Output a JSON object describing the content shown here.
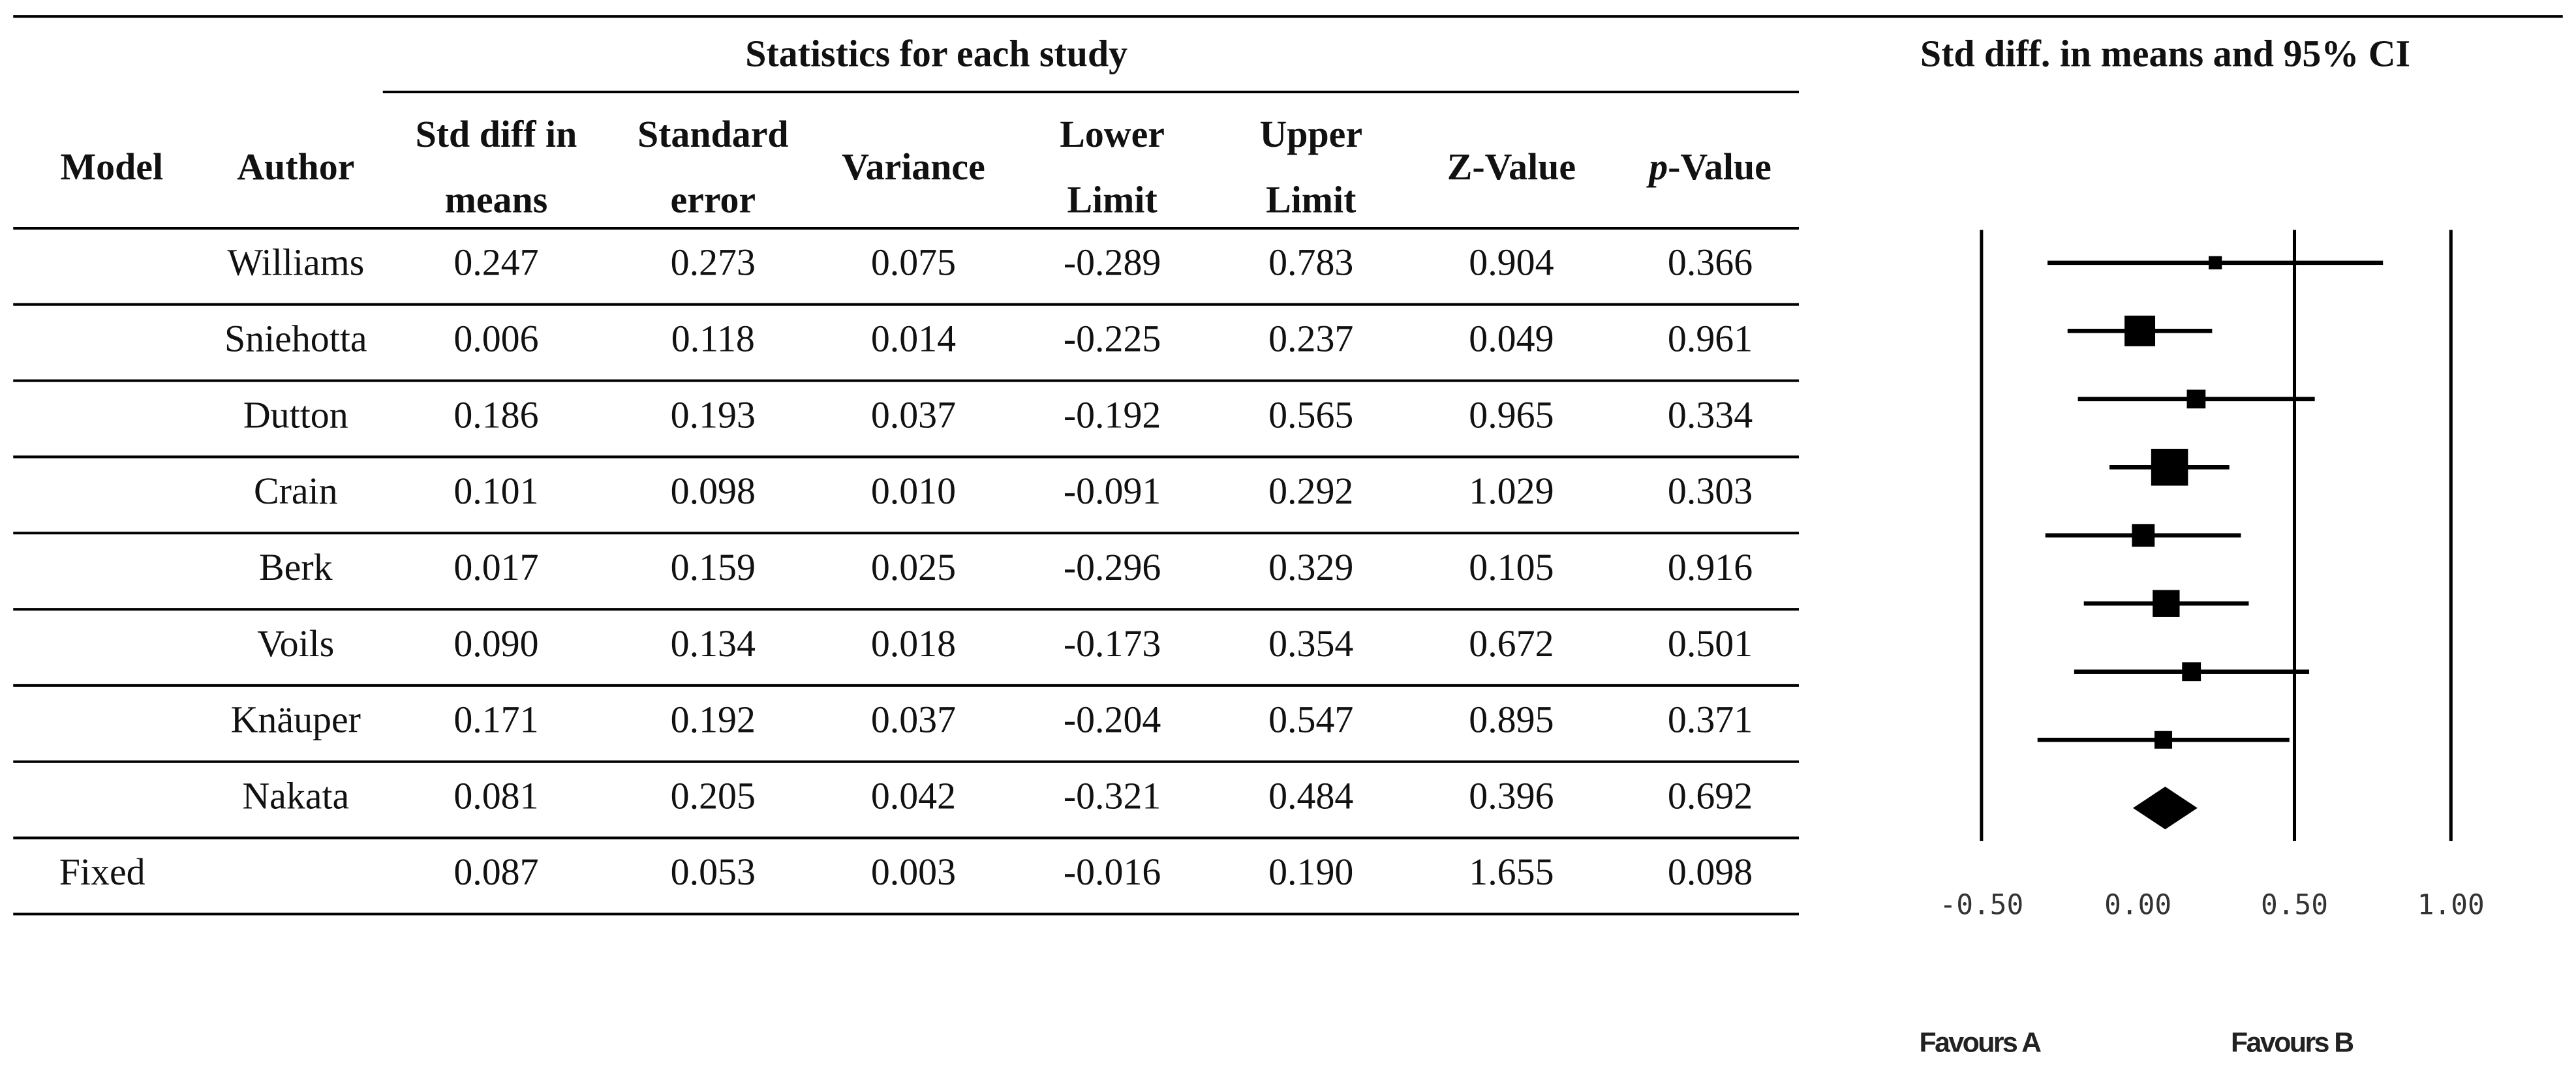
{
  "header": {
    "group_title": "Statistics for each study",
    "plot_title": "Std diff. in means and 95% CI"
  },
  "table": {
    "columns": [
      "Model",
      "Author",
      [
        "Std diff in",
        "means"
      ],
      [
        "Standard",
        "error"
      ],
      "Variance",
      [
        "Lower",
        "Limit"
      ],
      [
        "Upper",
        "Limit"
      ],
      "Z-Value",
      {
        "italic": "p",
        "text": "-Value"
      }
    ],
    "rows": [
      {
        "author": "Williams",
        "values": [
          "0.247",
          "0.273",
          "0.075",
          "-0.289",
          "0.783",
          "0.904",
          "0.366"
        ]
      },
      {
        "author": "Sniehotta",
        "values": [
          "0.006",
          "0.118",
          "0.014",
          "-0.225",
          "0.237",
          "0.049",
          "0.961"
        ]
      },
      {
        "author": "Dutton",
        "values": [
          "0.186",
          "0.193",
          "0.037",
          "-0.192",
          "0.565",
          "0.965",
          "0.334"
        ]
      },
      {
        "author": "Crain",
        "values": [
          "0.101",
          "0.098",
          "0.010",
          "-0.091",
          "0.292",
          "1.029",
          "0.303"
        ]
      },
      {
        "author": "Berk",
        "values": [
          "0.017",
          "0.159",
          "0.025",
          "-0.296",
          "0.329",
          "0.105",
          "0.916"
        ]
      },
      {
        "author": "Voils",
        "values": [
          "0.090",
          "0.134",
          "0.018",
          "-0.173",
          "0.354",
          "0.672",
          "0.501"
        ]
      },
      {
        "author": "Knäuper",
        "values": [
          "0.171",
          "0.192",
          "0.037",
          "-0.204",
          "0.547",
          "0.895",
          "0.371"
        ]
      },
      {
        "author": "Nakata",
        "values": [
          "0.081",
          "0.205",
          "0.042",
          "-0.321",
          "0.484",
          "0.396",
          "0.692"
        ]
      },
      {
        "model": "Fixed",
        "values": [
          "0.087",
          "0.053",
          "0.003",
          "-0.016",
          "0.190",
          "1.655",
          "0.098"
        ]
      }
    ]
  },
  "forest_plot": {
    "xlim": [
      -0.8,
      1.2
    ],
    "xticks": [
      {
        "value": -0.5,
        "label": "-0.50"
      },
      {
        "value": 0,
        "label": "0.00"
      },
      {
        "value": 0.5,
        "label": "0.50"
      },
      {
        "value": 1,
        "label": "1.00"
      }
    ],
    "left_label": "Favours A",
    "right_label": "Favours B"
  }
}
